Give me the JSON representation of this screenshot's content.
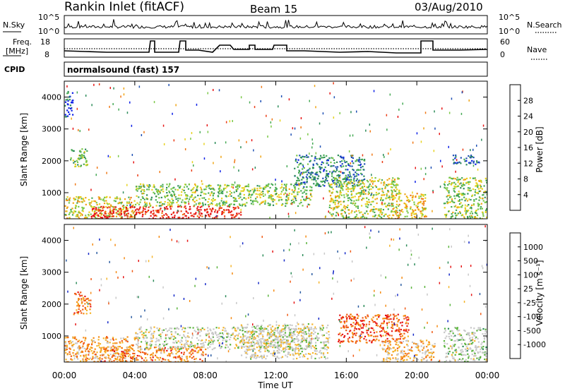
{
  "header": {
    "station": "Rankin Inlet (fitACF)",
    "beam": "Beam 15",
    "date": "03/Aug/2010"
  },
  "top_panels": {
    "nsky_label": "N.Sky",
    "nsky_tick_hi": "10^5",
    "nsky_tick_lo": "10^0",
    "nsearch_label": "N.Search",
    "nsearch_tick_hi": "10^5",
    "nsearch_tick_lo": "10^0",
    "freq_label_1": "Freq.",
    "freq_label_2": "[MHz]",
    "freq_tick_hi": "18",
    "freq_tick_lo": "8",
    "nave_label": "Nave",
    "nave_tick_hi": "60",
    "nave_tick_lo": "0",
    "cpid_label": "CPID",
    "cpid_value": "normalsound (fast) 157"
  },
  "colors": {
    "power_scale": [
      "#0a1ee6",
      "#1e50b4",
      "#2d8c5a",
      "#46aa55",
      "#7ac846",
      "#e6d21e",
      "#f0a514",
      "#f07814",
      "#eb3c14",
      "#e61414"
    ],
    "velocity_scale": [
      "#e61414",
      "#f05a14",
      "#f58c14",
      "#f5b428",
      "#c8c8c8",
      "#c8c8c8",
      "#5ab43c",
      "#2d8c5a",
      "#285aa0",
      "#1428c8"
    ],
    "accent_dots": "#000000"
  },
  "chart_data": [
    {
      "type": "heatmap",
      "name": "power",
      "ylabel": "Slant Range [km]",
      "xlabel": "",
      "x_ticks": [
        "00:00",
        "04:00",
        "08:00",
        "12:00",
        "16:00",
        "20:00",
        "00:00"
      ],
      "y_ticks": [
        "1000",
        "2000",
        "3000",
        "4000"
      ],
      "ylim": [
        180,
        4500
      ],
      "xlim_hours": [
        0,
        24
      ],
      "colorbar_label": "Power [dB]",
      "colorbar_ticks": [
        "4",
        "8",
        "12",
        "16",
        "20",
        "24",
        "28"
      ],
      "colorbar_range": [
        0,
        32
      ],
      "regions": [
        {
          "t0": 0.0,
          "t1": 4.0,
          "r0": 200,
          "r1": 900,
          "level": 0.55
        },
        {
          "t0": 1.5,
          "t1": 10.0,
          "r0": 200,
          "r1": 600,
          "level": 0.95
        },
        {
          "t0": 0.3,
          "t1": 1.3,
          "r0": 1800,
          "r1": 2400,
          "level": 0.4
        },
        {
          "t0": 0.0,
          "t1": 0.5,
          "r0": 3400,
          "r1": 4200,
          "level": 0.15
        },
        {
          "t0": 4.0,
          "t1": 14.0,
          "r0": 600,
          "r1": 1300,
          "level": 0.45
        },
        {
          "t0": 13.0,
          "t1": 17.0,
          "r0": 1200,
          "r1": 2200,
          "level": 0.25
        },
        {
          "t0": 15.0,
          "t1": 19.0,
          "r0": 200,
          "r1": 1500,
          "level": 0.5
        },
        {
          "t0": 18.5,
          "t1": 20.5,
          "r0": 200,
          "r1": 1000,
          "level": 0.6
        },
        {
          "t0": 21.5,
          "t1": 24.0,
          "r0": 200,
          "r1": 1500,
          "level": 0.45
        },
        {
          "t0": 22.0,
          "t1": 23.5,
          "r0": 1900,
          "r1": 2200,
          "level": 0.15
        }
      ]
    },
    {
      "type": "heatmap",
      "name": "velocity",
      "ylabel": "Slant Range [km]",
      "xlabel": "Time UT",
      "x_ticks": [
        "00:00",
        "04:00",
        "08:00",
        "12:00",
        "16:00",
        "20:00",
        "00:00"
      ],
      "y_ticks": [
        "1000",
        "2000",
        "3000",
        "4000"
      ],
      "ylim": [
        180,
        4500
      ],
      "xlim_hours": [
        0,
        24
      ],
      "colorbar_label": "Velocity [m s⁻¹]",
      "colorbar_ticks": [
        "1000",
        "500",
        "100",
        "25",
        "-25",
        "-100",
        "-500",
        "-1000"
      ],
      "colorbar_range": [
        -1000,
        1000
      ],
      "regions": [
        {
          "t0": 0.0,
          "t1": 4.0,
          "r0": 200,
          "r1": 1000,
          "level": 0.3
        },
        {
          "t0": 0.5,
          "t1": 1.5,
          "r0": 1700,
          "r1": 2400,
          "level": 0.2
        },
        {
          "t0": 2.0,
          "t1": 8.0,
          "r0": 200,
          "r1": 700,
          "level": 0.25
        },
        {
          "t0": 4.0,
          "t1": 14.0,
          "r0": 600,
          "r1": 1300,
          "level": 0.5
        },
        {
          "t0": 10.0,
          "t1": 15.0,
          "r0": 300,
          "r1": 1400,
          "level": 0.48
        },
        {
          "t0": 15.5,
          "t1": 19.5,
          "r0": 800,
          "r1": 1700,
          "level": 0.15
        },
        {
          "t0": 18.0,
          "t1": 21.0,
          "r0": 200,
          "r1": 900,
          "level": 0.35
        },
        {
          "t0": 21.5,
          "t1": 24.0,
          "r0": 200,
          "r1": 1300,
          "level": 0.55
        }
      ]
    }
  ]
}
